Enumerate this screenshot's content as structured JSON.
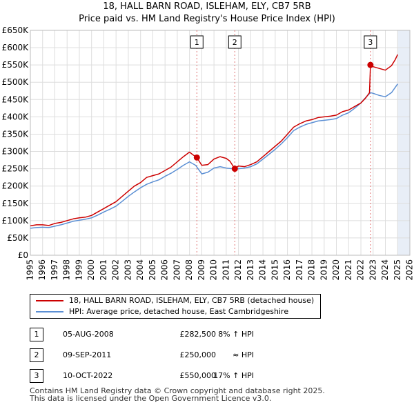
{
  "chart_data": {
    "type": "line",
    "title": "18, HALL BARN ROAD, ISLEHAM, ELY, CB7 5RB",
    "subtitle": "Price paid vs. HM Land Registry's House Price Index (HPI)",
    "xlim": [
      1995,
      2026
    ],
    "ylim": [
      0,
      650000
    ],
    "x_ticks": [
      1995,
      1996,
      1997,
      1998,
      1999,
      2000,
      2001,
      2002,
      2003,
      2004,
      2005,
      2006,
      2007,
      2008,
      2009,
      2010,
      2011,
      2012,
      2013,
      2014,
      2015,
      2016,
      2017,
      2018,
      2019,
      2020,
      2021,
      2022,
      2023,
      2024,
      2025,
      2026
    ],
    "y_ticks": [
      0,
      50000,
      100000,
      150000,
      200000,
      250000,
      300000,
      350000,
      400000,
      450000,
      500000,
      550000,
      600000,
      650000
    ],
    "y_tick_labels": [
      "£0",
      "£50K",
      "£100K",
      "£150K",
      "£200K",
      "£250K",
      "£300K",
      "£350K",
      "£400K",
      "£450K",
      "£500K",
      "£550K",
      "£600K",
      "£650K"
    ],
    "future_shade_start": 2025.0,
    "series": [
      {
        "name": "18, HALL BARN ROAD, ISLEHAM, ELY, CB7 5RB (detached house)",
        "color": "#cc0000",
        "points": [
          [
            1995.0,
            85000
          ],
          [
            1995.5,
            88000
          ],
          [
            1996.0,
            88000
          ],
          [
            1996.5,
            86000
          ],
          [
            1997.0,
            92000
          ],
          [
            1997.5,
            95000
          ],
          [
            1998.0,
            100000
          ],
          [
            1998.5,
            105000
          ],
          [
            1999.0,
            108000
          ],
          [
            1999.5,
            110000
          ],
          [
            2000.0,
            115000
          ],
          [
            2000.5,
            125000
          ],
          [
            2001.0,
            135000
          ],
          [
            2001.5,
            145000
          ],
          [
            2002.0,
            155000
          ],
          [
            2002.5,
            170000
          ],
          [
            2003.0,
            185000
          ],
          [
            2003.5,
            200000
          ],
          [
            2004.0,
            210000
          ],
          [
            2004.5,
            225000
          ],
          [
            2005.0,
            230000
          ],
          [
            2005.5,
            235000
          ],
          [
            2006.0,
            245000
          ],
          [
            2006.5,
            255000
          ],
          [
            2007.0,
            270000
          ],
          [
            2007.5,
            285000
          ],
          [
            2008.0,
            298000
          ],
          [
            2008.3,
            290000
          ],
          [
            2008.6,
            282500
          ],
          [
            2009.0,
            260000
          ],
          [
            2009.5,
            262000
          ],
          [
            2010.0,
            278000
          ],
          [
            2010.5,
            285000
          ],
          [
            2011.0,
            280000
          ],
          [
            2011.3,
            272000
          ],
          [
            2011.7,
            250000
          ],
          [
            2012.0,
            258000
          ],
          [
            2012.5,
            256000
          ],
          [
            2013.0,
            262000
          ],
          [
            2013.5,
            270000
          ],
          [
            2014.0,
            285000
          ],
          [
            2014.5,
            300000
          ],
          [
            2015.0,
            315000
          ],
          [
            2015.5,
            330000
          ],
          [
            2016.0,
            350000
          ],
          [
            2016.5,
            370000
          ],
          [
            2017.0,
            380000
          ],
          [
            2017.5,
            388000
          ],
          [
            2018.0,
            392000
          ],
          [
            2018.5,
            398000
          ],
          [
            2019.0,
            400000
          ],
          [
            2019.5,
            402000
          ],
          [
            2020.0,
            405000
          ],
          [
            2020.5,
            415000
          ],
          [
            2021.0,
            420000
          ],
          [
            2021.5,
            430000
          ],
          [
            2022.0,
            440000
          ],
          [
            2022.4,
            455000
          ],
          [
            2022.7,
            470000
          ],
          [
            2022.78,
            550000
          ],
          [
            2023.0,
            545000
          ],
          [
            2023.5,
            540000
          ],
          [
            2024.0,
            535000
          ],
          [
            2024.5,
            548000
          ],
          [
            2024.8,
            565000
          ],
          [
            2025.0,
            580000
          ]
        ]
      },
      {
        "name": "HPI: Average price, detached house, East Cambridgeshire",
        "color": "#5b8fd4",
        "points": [
          [
            1995.0,
            78000
          ],
          [
            1995.5,
            80000
          ],
          [
            1996.0,
            81000
          ],
          [
            1996.5,
            80000
          ],
          [
            1997.0,
            84000
          ],
          [
            1997.5,
            88000
          ],
          [
            1998.0,
            93000
          ],
          [
            1998.5,
            98000
          ],
          [
            1999.0,
            101000
          ],
          [
            1999.5,
            104000
          ],
          [
            2000.0,
            108000
          ],
          [
            2000.5,
            116000
          ],
          [
            2001.0,
            125000
          ],
          [
            2001.5,
            133000
          ],
          [
            2002.0,
            142000
          ],
          [
            2002.5,
            156000
          ],
          [
            2003.0,
            170000
          ],
          [
            2003.5,
            183000
          ],
          [
            2004.0,
            195000
          ],
          [
            2004.5,
            205000
          ],
          [
            2005.0,
            212000
          ],
          [
            2005.5,
            218000
          ],
          [
            2006.0,
            228000
          ],
          [
            2006.5,
            237000
          ],
          [
            2007.0,
            248000
          ],
          [
            2007.5,
            260000
          ],
          [
            2008.0,
            270000
          ],
          [
            2008.5,
            260000
          ],
          [
            2009.0,
            235000
          ],
          [
            2009.5,
            240000
          ],
          [
            2010.0,
            252000
          ],
          [
            2010.5,
            256000
          ],
          [
            2011.0,
            252000
          ],
          [
            2011.5,
            250000
          ],
          [
            2012.0,
            250000
          ],
          [
            2012.5,
            252000
          ],
          [
            2013.0,
            256000
          ],
          [
            2013.5,
            264000
          ],
          [
            2014.0,
            278000
          ],
          [
            2014.5,
            292000
          ],
          [
            2015.0,
            306000
          ],
          [
            2015.5,
            322000
          ],
          [
            2016.0,
            340000
          ],
          [
            2016.5,
            360000
          ],
          [
            2017.0,
            370000
          ],
          [
            2017.5,
            378000
          ],
          [
            2018.0,
            383000
          ],
          [
            2018.5,
            388000
          ],
          [
            2019.0,
            390000
          ],
          [
            2019.5,
            392000
          ],
          [
            2020.0,
            395000
          ],
          [
            2020.5,
            405000
          ],
          [
            2021.0,
            412000
          ],
          [
            2021.5,
            425000
          ],
          [
            2022.0,
            440000
          ],
          [
            2022.5,
            460000
          ],
          [
            2022.78,
            470000
          ],
          [
            2023.0,
            468000
          ],
          [
            2023.5,
            462000
          ],
          [
            2024.0,
            458000
          ],
          [
            2024.5,
            470000
          ],
          [
            2025.0,
            495000
          ]
        ]
      }
    ],
    "sales": [
      {
        "id": "1",
        "x": 2008.6,
        "price": 282500
      },
      {
        "id": "2",
        "x": 2011.7,
        "price": 250000
      },
      {
        "id": "3",
        "x": 2022.78,
        "price": 550000
      }
    ]
  },
  "legend": {
    "property_label": "18, HALL BARN ROAD, ISLEHAM, ELY, CB7 5RB (detached house)",
    "hpi_label": "HPI: Average price, detached house, East Cambridgeshire"
  },
  "sales_table": [
    {
      "num": "1",
      "date": "05-AUG-2008",
      "price": "£282,500",
      "hpi": "8% ↑ HPI"
    },
    {
      "num": "2",
      "date": "09-SEP-2011",
      "price": "£250,000",
      "hpi": "≈ HPI"
    },
    {
      "num": "3",
      "date": "10-OCT-2022",
      "price": "£550,000",
      "hpi": "17% ↑ HPI"
    }
  ],
  "footer": {
    "line1": "Contains HM Land Registry data © Crown copyright and database right 2025.",
    "line2": "This data is licensed under the Open Government Licence v3.0."
  }
}
